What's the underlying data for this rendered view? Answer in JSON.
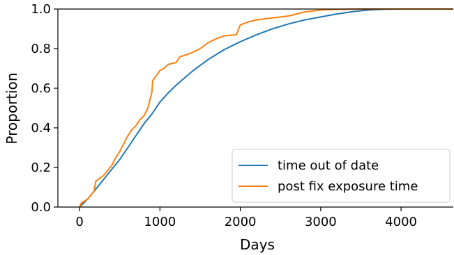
{
  "chart_data": {
    "type": "line",
    "title": "",
    "xlabel": "Days",
    "ylabel": "Proportion",
    "xlim": [
      -270,
      4650
    ],
    "ylim": [
      0.0,
      1.0
    ],
    "x_ticks": [
      0,
      1000,
      2000,
      3000,
      4000
    ],
    "x_tick_labels": [
      "0",
      "1000",
      "2000",
      "3000",
      "4000"
    ],
    "y_ticks": [
      0.0,
      0.2,
      0.4,
      0.6,
      0.8,
      1.0
    ],
    "y_tick_labels": [
      "0.0",
      "0.2",
      "0.4",
      "0.6",
      "0.8",
      "1.0"
    ],
    "grid": false,
    "legend_position": "lower-right",
    "series": [
      {
        "name": "time out of date",
        "color": "#1f77b4",
        "x": [
          0,
          50,
          100,
          200,
          300,
          400,
          500,
          600,
          700,
          800,
          900,
          1000,
          1100,
          1200,
          1300,
          1400,
          1500,
          1600,
          1700,
          1800,
          1900,
          2000,
          2200,
          2400,
          2600,
          2800,
          3000,
          3200,
          3400,
          3600,
          3800,
          4000
        ],
        "y": [
          0.0,
          0.02,
          0.04,
          0.09,
          0.14,
          0.19,
          0.24,
          0.3,
          0.36,
          0.42,
          0.47,
          0.53,
          0.575,
          0.615,
          0.65,
          0.685,
          0.715,
          0.745,
          0.77,
          0.795,
          0.815,
          0.835,
          0.87,
          0.9,
          0.925,
          0.945,
          0.96,
          0.975,
          0.987,
          0.995,
          0.999,
          1.0
        ]
      },
      {
        "name": "post fix exposure time",
        "color": "#ff7f0e",
        "x": [
          0,
          20,
          100,
          180,
          200,
          300,
          400,
          450,
          500,
          550,
          600,
          650,
          700,
          750,
          800,
          850,
          880,
          900,
          910,
          950,
          1000,
          1050,
          1100,
          1200,
          1250,
          1300,
          1400,
          1500,
          1600,
          1700,
          1800,
          1950,
          1990,
          2000,
          2100,
          2200,
          2400,
          2600,
          2700,
          2800,
          2900,
          3000,
          3200,
          3500,
          3800
        ],
        "y": [
          0.0,
          0.02,
          0.04,
          0.08,
          0.13,
          0.16,
          0.21,
          0.25,
          0.28,
          0.32,
          0.36,
          0.39,
          0.41,
          0.44,
          0.46,
          0.5,
          0.55,
          0.58,
          0.64,
          0.66,
          0.69,
          0.7,
          0.72,
          0.73,
          0.76,
          0.765,
          0.78,
          0.8,
          0.83,
          0.85,
          0.865,
          0.87,
          0.91,
          0.92,
          0.935,
          0.945,
          0.955,
          0.965,
          0.975,
          0.985,
          0.99,
          0.995,
          0.998,
          1.0,
          1.0
        ]
      }
    ]
  }
}
